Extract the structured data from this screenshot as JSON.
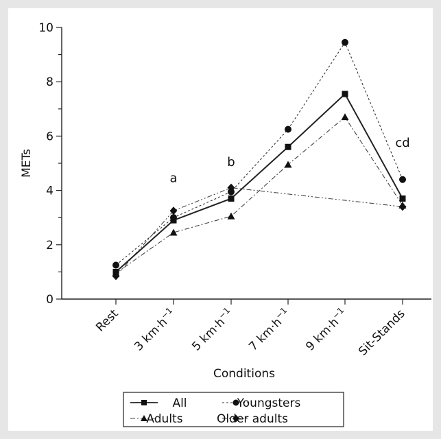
{
  "chart_data": {
    "type": "line",
    "xlabel": "Conditions",
    "ylabel": "METs",
    "ylim": [
      0,
      10
    ],
    "yticks": [
      "0",
      "2",
      "4",
      "6",
      "8",
      "10"
    ],
    "categories": [
      {
        "base": "Rest",
        "sup": ""
      },
      {
        "base": "3 km·h",
        "sup": "−1"
      },
      {
        "base": "5 km·h",
        "sup": "−1"
      },
      {
        "base": "7 km·h",
        "sup": "−1"
      },
      {
        "base": "9 km·h",
        "sup": "−1"
      },
      {
        "base": "Sit-Stands",
        "sup": ""
      }
    ],
    "series": [
      {
        "name": "All",
        "marker": "square",
        "dash": "solid",
        "color": "#222222",
        "values": [
          1.0,
          2.9,
          3.7,
          5.6,
          7.55,
          3.7
        ]
      },
      {
        "name": "Youngsters",
        "marker": "circle",
        "dash": "dotted",
        "color": "#333333",
        "values": [
          1.25,
          3.0,
          3.95,
          6.25,
          9.45,
          4.4
        ]
      },
      {
        "name": "Adults",
        "marker": "triangle",
        "dash": "dashdot",
        "color": "#444444",
        "values": [
          0.95,
          2.45,
          3.05,
          4.95,
          6.7,
          3.45
        ]
      },
      {
        "name": "Older adults",
        "marker": "diamond",
        "dash": "dashdotdot",
        "color": "#444444",
        "values": [
          0.85,
          3.25,
          4.1,
          null,
          null,
          3.4
        ]
      }
    ],
    "annotations": [
      {
        "text": "a",
        "category_index": 1,
        "y": 4.3
      },
      {
        "text": "b",
        "category_index": 2,
        "y": 4.9
      },
      {
        "text": "cd",
        "category_index": 5,
        "y": 5.6
      }
    ],
    "legend": {
      "position": "bottom"
    }
  }
}
